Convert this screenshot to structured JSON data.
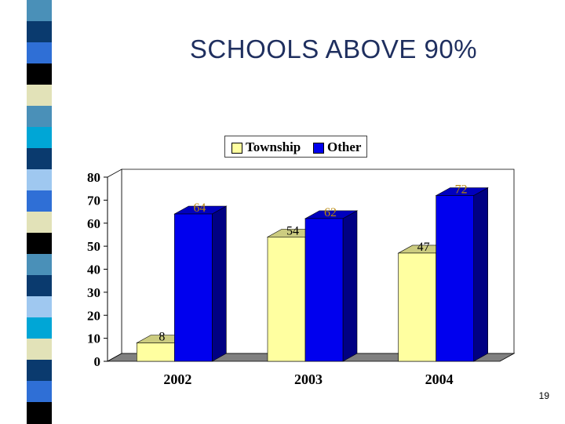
{
  "title": "SCHOOLS ABOVE 90%",
  "page_number": "19",
  "colors": {
    "township": "#ffffa0",
    "other": "#0000ee",
    "axis": "#000000",
    "floor": "#808080",
    "title": "#1f2f5f"
  },
  "decor_strip_colors": [
    "#4a90b8",
    "#0a3a6e",
    "#2f6fd6",
    "#000000",
    "#e2e2b8",
    "#4a90b8",
    "#00a6d6",
    "#0a3a6e",
    "#9fc8f0",
    "#2f6fd6",
    "#e2e2b8",
    "#000000",
    "#4a90b8",
    "#0a3a6e",
    "#9fc8f0",
    "#00a6d6",
    "#e2e2b8",
    "#0a3a6e",
    "#2f6fd6",
    "#000000"
  ],
  "legend": [
    {
      "label": "Township",
      "color": "#ffffa0"
    },
    {
      "label": "Other",
      "color": "#0000ee"
    }
  ],
  "chart_data": {
    "type": "bar",
    "title": "",
    "categories": [
      "2002",
      "2003",
      "2004"
    ],
    "series": [
      {
        "name": "Township",
        "values": [
          8,
          54,
          47
        ],
        "color": "#ffffa0",
        "label_color": "#000000"
      },
      {
        "name": "Other",
        "values": [
          64,
          62,
          72
        ],
        "color": "#0000ee",
        "label_color": "#b8860b"
      }
    ],
    "ylim": [
      0,
      80
    ],
    "yticks": [
      "0",
      "10",
      "20",
      "30",
      "40",
      "50",
      "60",
      "70",
      "80"
    ],
    "xlabel": "",
    "ylabel": "",
    "grid": false,
    "legend_position": "top",
    "style": "3d"
  }
}
